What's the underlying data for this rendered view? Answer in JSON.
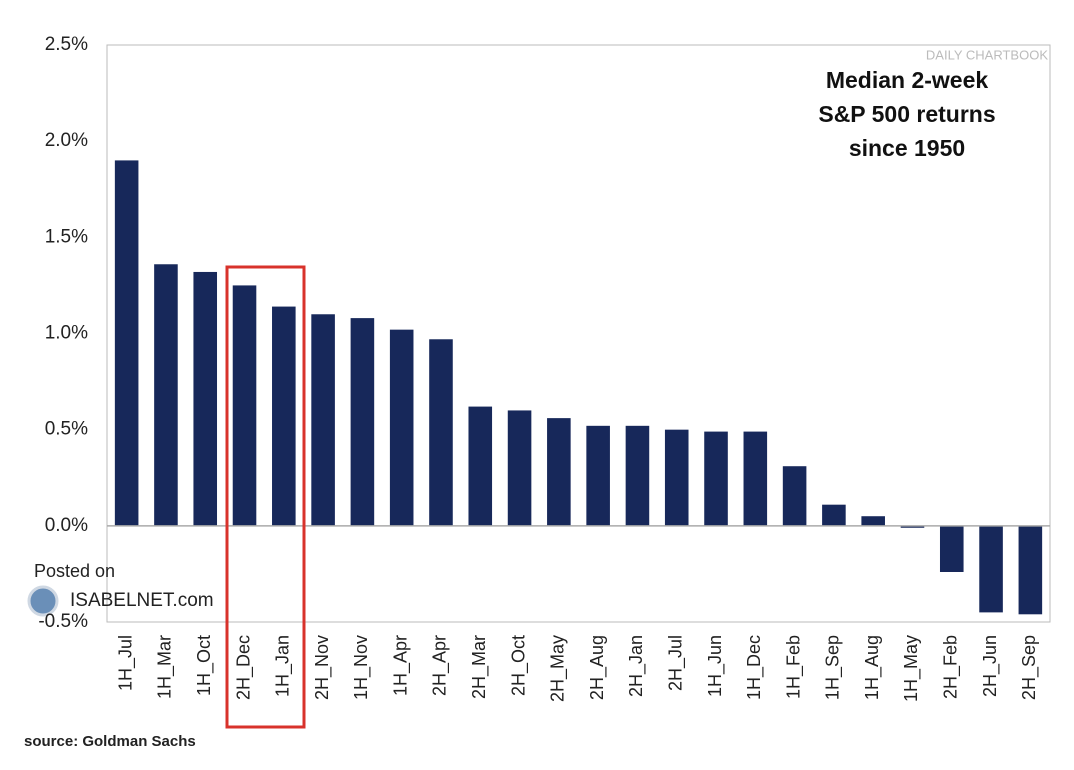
{
  "chart_data": {
    "type": "bar",
    "title": [
      "Median 2-week",
      "S&P 500 returns",
      "since 1950"
    ],
    "watermark": "DAILY CHARTBOOK",
    "posted_on": "Posted on",
    "site": "ISABELNET.com",
    "source": "source: Goldman Sachs",
    "categories": [
      "1H_Jul",
      "1H_Mar",
      "1H_Oct",
      "2H_Dec",
      "1H_Jan",
      "2H_Nov",
      "1H_Nov",
      "1H_Apr",
      "2H_Apr",
      "2H_Mar",
      "2H_Oct",
      "2H_May",
      "2H_Aug",
      "2H_Jan",
      "2H_Jul",
      "1H_Jun",
      "1H_Dec",
      "1H_Feb",
      "1H_Sep",
      "1H_Aug",
      "1H_May",
      "2H_Feb",
      "2H_Jun",
      "2H_Sep"
    ],
    "values": [
      1.9,
      1.36,
      1.32,
      1.25,
      1.14,
      1.1,
      1.08,
      1.02,
      0.97,
      0.62,
      0.6,
      0.56,
      0.52,
      0.52,
      0.5,
      0.49,
      0.49,
      0.31,
      0.11,
      0.05,
      -0.01,
      -0.24,
      -0.45,
      -0.46
    ],
    "color": "#17285a",
    "ylim": [
      -0.5,
      2.5
    ],
    "yticks": [
      {
        "value": -0.5,
        "label": "-0.5%"
      },
      {
        "value": 0,
        "label": "0.0%"
      },
      {
        "value": 0.5,
        "label": "0.5%"
      },
      {
        "value": 1,
        "label": "1.0%"
      },
      {
        "value": 1.5,
        "label": "1.5%"
      },
      {
        "value": 2,
        "label": "2.0%"
      },
      {
        "value": 2.5,
        "label": "2.5%"
      }
    ],
    "grid": false
  }
}
